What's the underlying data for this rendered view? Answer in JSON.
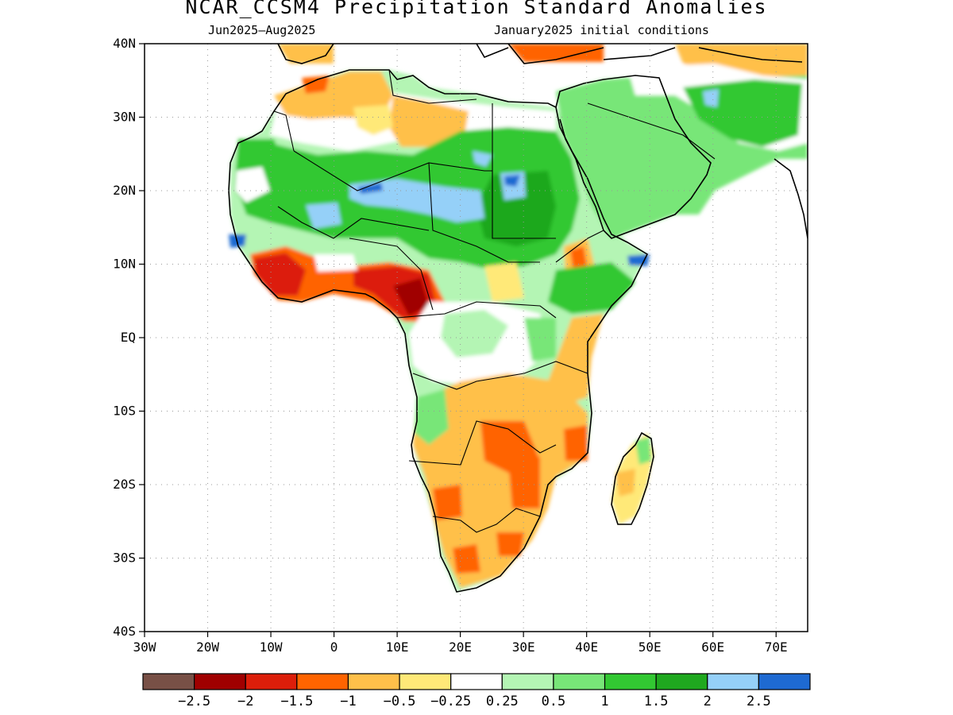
{
  "header": {
    "title": "NCAR_CCSM4 Precipitation Standard Anomalies",
    "period": "Jun2025–Aug2025",
    "init": "January2025 initial conditions"
  },
  "map": {
    "lon_range": [
      -30,
      75
    ],
    "lat_range": [
      -40,
      40
    ],
    "y_ticks": [
      "40N",
      "30N",
      "20N",
      "10N",
      "EQ",
      "10S",
      "20S",
      "30S",
      "40S"
    ],
    "x_ticks": [
      "30W",
      "20W",
      "10W",
      "0",
      "10E",
      "20E",
      "30E",
      "40E",
      "50E",
      "60E",
      "70E"
    ],
    "grid": true,
    "colors": {
      "wet_strong": "#1e6ad2",
      "wet_light_blue": "#95d0f8",
      "green_dark": "#1fa81f",
      "green": "#32c832",
      "green_mid": "#78e678",
      "green_light": "#b4f5b4",
      "yellow": "#ffe978",
      "orange_light": "#ffc04a",
      "orange": "#ff6400",
      "red": "#dc1e0a",
      "dark_red": "#a00000",
      "brown": "#785046"
    }
  },
  "colorbar": {
    "colors": [
      "#785046",
      "#a00000",
      "#dc1e0a",
      "#ff6400",
      "#ffc04a",
      "#ffe978",
      "#ffffff",
      "#b4f5b4",
      "#78e678",
      "#32c832",
      "#1fa81f",
      "#95d0f8",
      "#1e6ad2"
    ],
    "labels": [
      "−2.5",
      "−2",
      "−1.5",
      "−1",
      "−0.5",
      "−0.25",
      "0.25",
      "0.5",
      "1",
      "1.5",
      "2",
      "2.5"
    ]
  }
}
